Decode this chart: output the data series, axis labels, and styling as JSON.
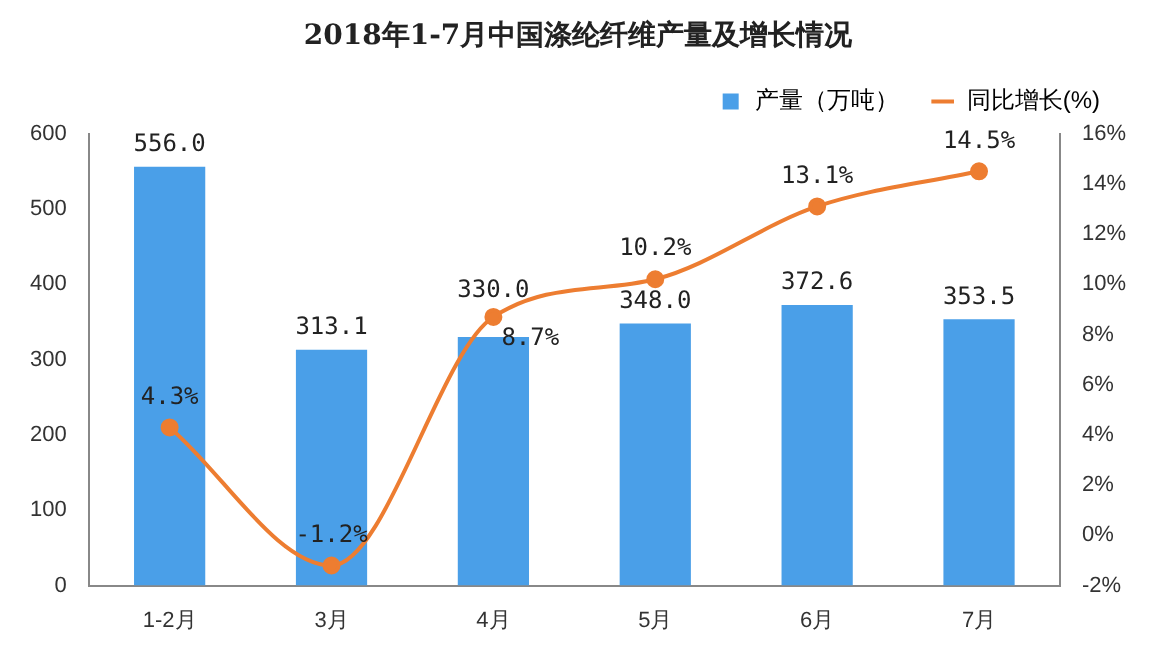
{
  "chart_data": {
    "type": "bar",
    "title": "2018年1-7月中国涤纶纤维产量及增长情况",
    "categories": [
      "1-2月",
      "3月",
      "4月",
      "5月",
      "6月",
      "7月"
    ],
    "series": [
      {
        "name": "产量（万吨）",
        "color": "#4a9fe8",
        "values": [
          556.0,
          313.1,
          330.0,
          348.0,
          372.6,
          353.5
        ],
        "value_labels": [
          "556.0",
          "313.1",
          "330.0",
          "348.0",
          "372.6",
          "353.5"
        ]
      },
      {
        "name": "同比增长(%)",
        "type": "line",
        "axis": "y2",
        "color": "#ed7d31",
        "values": [
          4.3,
          -1.2,
          8.7,
          10.2,
          13.1,
          14.5
        ],
        "value_labels": [
          "4.3%",
          "-1.2%",
          "8.7%",
          "10.2%",
          "13.1%",
          "14.5%"
        ]
      }
    ],
    "ylim": [
      0,
      600
    ],
    "yticks": [
      0,
      100,
      200,
      300,
      400,
      500,
      600
    ],
    "y2lim": [
      -2,
      16
    ],
    "y2ticks": [
      {
        "value": -2,
        "label": "-2%"
      },
      {
        "value": 0,
        "label": "0%"
      },
      {
        "value": 2,
        "label": "2%"
      },
      {
        "value": 4,
        "label": "4%"
      },
      {
        "value": 6,
        "label": "6%"
      },
      {
        "value": 8,
        "label": "8%"
      },
      {
        "value": 10,
        "label": "10%"
      },
      {
        "value": 12,
        "label": "12%"
      },
      {
        "value": 14,
        "label": "14%"
      },
      {
        "value": 16,
        "label": "16%"
      }
    ],
    "legend": "top",
    "marker": "circle",
    "grid": false
  }
}
